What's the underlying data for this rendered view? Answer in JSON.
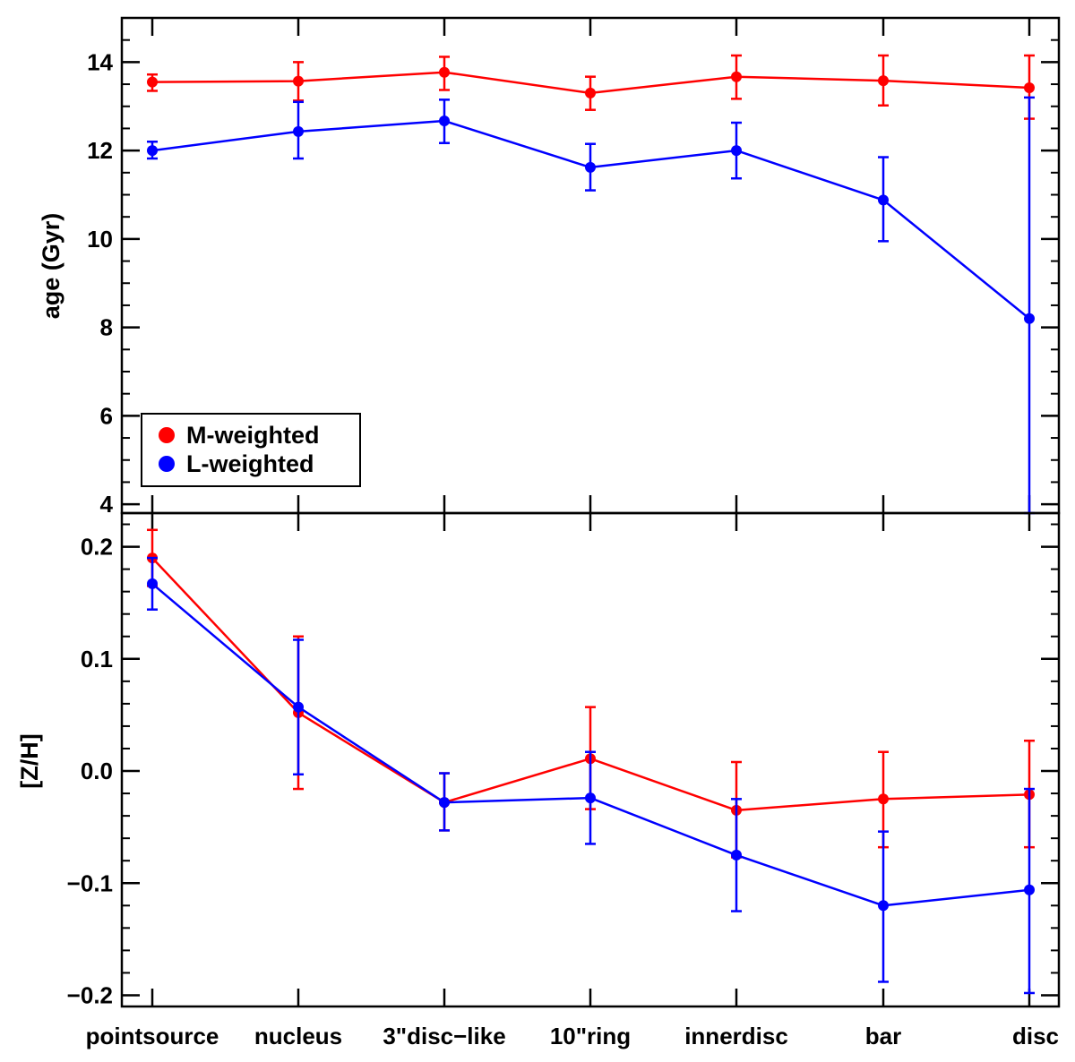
{
  "chart_data": [
    {
      "type": "line",
      "panel": "top",
      "title": "",
      "xlabel": "",
      "ylabel": "age (Gyr)",
      "ylim": [
        3.8,
        15.0
      ],
      "yticks": [
        4,
        6,
        8,
        10,
        12,
        14
      ],
      "ytick_labels": [
        "4",
        "6",
        "8",
        "10",
        "12",
        "14"
      ],
      "categories": [
        "pointsource",
        "nucleus",
        "3\"disc-like",
        "10\"ring",
        "innerdisc",
        "bar",
        "disc"
      ],
      "legend": {
        "placement": "bottom-left",
        "entries": [
          "M-weighted",
          "L-weighted"
        ]
      },
      "series": [
        {
          "name": "M-weighted",
          "color": "#ff0000",
          "values": [
            13.55,
            13.57,
            13.77,
            13.3,
            13.67,
            13.58,
            13.42
          ],
          "err_low": [
            13.35,
            13.13,
            13.37,
            12.92,
            13.17,
            13.02,
            12.72
          ],
          "err_high": [
            13.72,
            14.0,
            14.12,
            13.67,
            14.15,
            14.15,
            14.15
          ]
        },
        {
          "name": "L-weighted",
          "color": "#0000ff",
          "values": [
            12.0,
            12.43,
            12.67,
            11.62,
            12.0,
            10.88,
            8.2
          ],
          "err_low": [
            11.82,
            11.82,
            12.17,
            11.1,
            11.37,
            9.95,
            3.8
          ],
          "err_high": [
            12.2,
            13.1,
            13.15,
            12.15,
            12.63,
            11.85,
            13.2
          ]
        }
      ]
    },
    {
      "type": "line",
      "panel": "bottom",
      "title": "",
      "xlabel": "",
      "ylabel": "[Z/H]",
      "ylim": [
        -0.21,
        0.23
      ],
      "yticks": [
        -0.2,
        -0.1,
        0.0,
        0.1,
        0.2
      ],
      "ytick_labels": [
        "−0.2",
        "−0.1",
        "0.0",
        "0.1",
        "0.2"
      ],
      "categories": [
        "pointsource",
        "nucleus",
        "3\"disc-like",
        "10\"ring",
        "innerdisc",
        "bar",
        "disc"
      ],
      "category_labels": [
        "pointsource",
        "nucleus",
        "3\"disc−like",
        "10\"ring",
        "innerdisc",
        "bar",
        "disc"
      ],
      "series": [
        {
          "name": "M-weighted",
          "color": "#ff0000",
          "values": [
            0.19,
            0.052,
            -0.028,
            0.011,
            -0.035,
            -0.025,
            -0.021
          ],
          "err_low": [
            0.165,
            -0.016,
            -0.053,
            -0.034,
            -0.077,
            -0.068,
            -0.068
          ],
          "err_high": [
            0.215,
            0.12,
            -0.002,
            0.057,
            0.008,
            0.017,
            0.027
          ]
        },
        {
          "name": "L-weighted",
          "color": "#0000ff",
          "values": [
            0.167,
            0.057,
            -0.028,
            -0.024,
            -0.075,
            -0.12,
            -0.106
          ],
          "err_low": [
            0.144,
            -0.003,
            -0.053,
            -0.065,
            -0.125,
            -0.188,
            -0.198
          ],
          "err_high": [
            0.19,
            0.117,
            -0.002,
            0.017,
            -0.025,
            -0.054,
            -0.016
          ]
        }
      ]
    }
  ]
}
